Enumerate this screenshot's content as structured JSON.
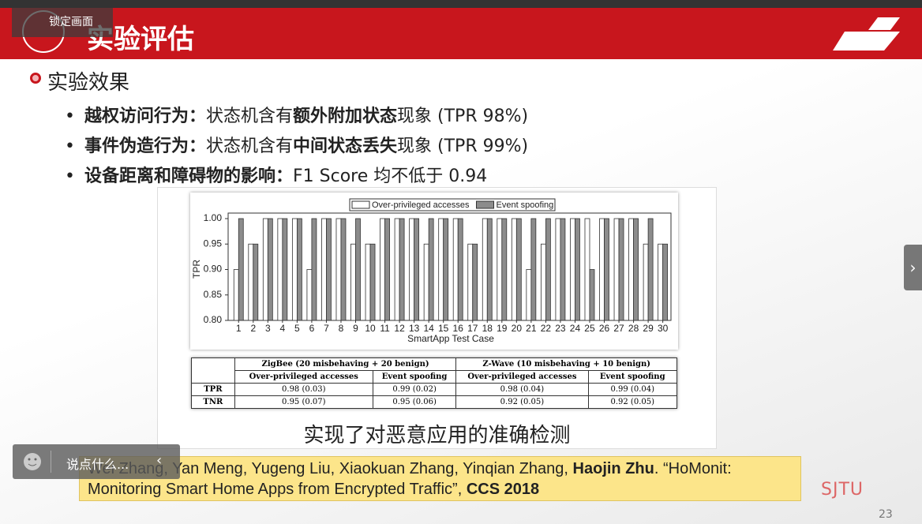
{
  "header": {
    "title": "实验评估",
    "lock_label": "锁定画面"
  },
  "section": "实验效果",
  "bullets": [
    [
      {
        "text": "越权访问行为：",
        "bold": true
      },
      {
        "text": "状态机含有",
        "bold": false
      },
      {
        "text": "额外附加状态",
        "bold": true
      },
      {
        "text": "现象 (TPR 98%)",
        "bold": false
      }
    ],
    [
      {
        "text": "事件伪造行为：",
        "bold": true
      },
      {
        "text": "状态机含有",
        "bold": false
      },
      {
        "text": "中间状态丢失",
        "bold": true
      },
      {
        "text": "现象 (TPR 99%)",
        "bold": false
      }
    ],
    [
      {
        "text": "设备距离和障碍物的影响：",
        "bold": true
      },
      {
        "text": "F1 Score 均不低于 0.94",
        "bold": false
      }
    ]
  ],
  "chart_data": {
    "type": "bar",
    "ylabel": "TPR",
    "xlabel": "SmartApp Test Case",
    "categories": [
      "1",
      "2",
      "3",
      "4",
      "5",
      "6",
      "7",
      "8",
      "9",
      "10",
      "11",
      "12",
      "13",
      "14",
      "15",
      "16",
      "17",
      "18",
      "19",
      "20",
      "21",
      "22",
      "23",
      "24",
      "25",
      "26",
      "27",
      "28",
      "29",
      "30"
    ],
    "series": [
      {
        "name": "Over-privileged accesses",
        "color": "#ffffff",
        "values": [
          0.9,
          0.95,
          1.0,
          1.0,
          1.0,
          0.9,
          1.0,
          1.0,
          0.95,
          0.95,
          1.0,
          1.0,
          1.0,
          0.95,
          1.0,
          1.0,
          0.95,
          1.0,
          1.0,
          1.0,
          0.9,
          0.95,
          1.0,
          1.0,
          1.0,
          1.0,
          1.0,
          1.0,
          0.95,
          0.95
        ]
      },
      {
        "name": "Event spoofing",
        "color": "#8c8c8c",
        "values": [
          1.0,
          0.95,
          1.0,
          1.0,
          1.0,
          1.0,
          1.0,
          1.0,
          1.0,
          0.95,
          1.0,
          1.0,
          1.0,
          1.0,
          1.0,
          1.0,
          0.95,
          1.0,
          1.0,
          1.0,
          1.0,
          1.0,
          1.0,
          1.0,
          0.9,
          1.0,
          1.0,
          1.0,
          1.0,
          0.95
        ]
      }
    ],
    "ylim": [
      0.8,
      1.0
    ],
    "yticks": [
      {
        "value": 0.8,
        "label": "0.80"
      },
      0.85,
      {
        "value": 0.9,
        "label": "0.90"
      },
      0.95,
      {
        "value": 1.0,
        "label": "1.00"
      }
    ]
  },
  "table": {
    "groups": [
      "ZigBee (20 misbehaving + 20 benign)",
      "Z-Wave (10 misbehaving + 10 benign)"
    ],
    "columns": [
      "Over-privileged accesses",
      "Event spoofing",
      "Over-privileged accesses",
      "Event spoofing"
    ],
    "rows": [
      [
        "TPR",
        "0.98 (0.03)",
        "0.99 (0.02)",
        "0.98 (0.04)",
        "0.99 (0.04)"
      ],
      [
        "TNR",
        "0.95 (0.07)",
        "0.95 (0.06)",
        "0.92 (0.05)",
        "0.92 (0.05)"
      ]
    ]
  },
  "caption": "实现了对恶意应用的准确检测",
  "citation": [
    {
      "text": "Wei Zhang, Yan Meng, Yugeng Liu, Xiaokuan Zhang, Yinqian Zhang, ",
      "bold": false
    },
    {
      "text": "Haojin Zhu",
      "bold": true
    },
    {
      "text": ". “HoMonit: Monitoring Smart Home Apps from Encrypted Traffic”, ",
      "bold": false
    },
    {
      "text": "CCS 2018",
      "bold": true
    }
  ],
  "comment_placeholder": "说点什么...",
  "logo": "SJTU",
  "page_number": "23"
}
